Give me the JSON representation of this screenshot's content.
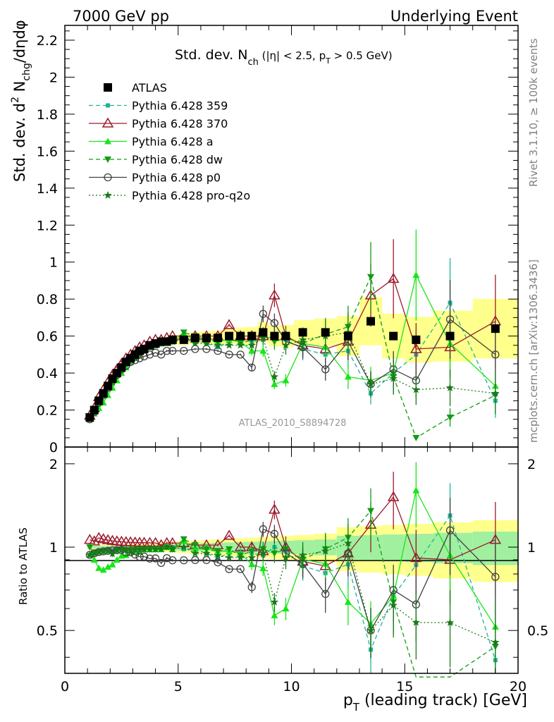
{
  "header": {
    "left": "7000 GeV pp",
    "right": "Underlying Event"
  },
  "plot_title": {
    "main": "Std. dev. N",
    "sub": "ch",
    "rest": " (|η| < 2.5, p",
    "sub2": "T",
    "rest2": " > 0.5 GeV)"
  },
  "side_labels": {
    "rivet": "Rivet 3.1.10, ≥ 100k events",
    "mcplots": "mcplots.cern.ch [arXiv:1306.3436]"
  },
  "watermark": "ATLAS_2010_S8894728",
  "chart_data": [
    {
      "type": "line",
      "panel": "main",
      "ylabel": "Std. dev. d² N_chg/dηdφ",
      "xlim": [
        0,
        20
      ],
      "ylim": [
        0,
        2.28
      ],
      "yticks": [
        "0",
        "0.2",
        "0.4",
        "0.6",
        "0.8",
        "1",
        "1.2",
        "1.4",
        "1.6",
        "1.8",
        "2",
        "2.2"
      ],
      "x": [
        1.1,
        1.3,
        1.5,
        1.7,
        1.9,
        2.1,
        2.3,
        2.5,
        2.7,
        2.9,
        3.1,
        3.3,
        3.5,
        3.75,
        4.0,
        4.25,
        4.5,
        4.75,
        5.25,
        5.75,
        6.25,
        6.75,
        7.25,
        7.75,
        8.25,
        8.75,
        9.25,
        9.75,
        10.5,
        11.5,
        12.5,
        13.5,
        14.5,
        15.5,
        17.0,
        19.0
      ],
      "series": [
        {
          "name": "ATLAS",
          "color": "#000000",
          "marker": "square",
          "style": "none",
          "values": [
            0.16,
            0.2,
            0.25,
            0.29,
            0.33,
            0.37,
            0.4,
            0.43,
            0.46,
            0.48,
            0.5,
            0.52,
            0.53,
            0.55,
            0.56,
            0.57,
            0.57,
            0.58,
            0.58,
            0.59,
            0.59,
            0.59,
            0.6,
            0.6,
            0.6,
            0.62,
            0.6,
            0.6,
            0.62,
            0.62,
            0.6,
            0.68,
            0.6,
            0.58,
            0.6,
            0.64
          ]
        },
        {
          "name": "Pythia 6.428 359",
          "color": "#1fb39a",
          "marker": "small-square",
          "style": "dashed",
          "values": [
            0.15,
            0.19,
            0.24,
            0.28,
            0.32,
            0.36,
            0.39,
            0.42,
            0.45,
            0.47,
            0.49,
            0.51,
            0.52,
            0.54,
            0.55,
            0.56,
            0.57,
            0.58,
            0.57,
            0.58,
            0.56,
            0.54,
            0.57,
            0.58,
            0.57,
            0.58,
            0.6,
            0.58,
            0.53,
            0.5,
            0.52,
            0.29,
            0.4,
            0.5,
            0.78,
            0.25
          ]
        },
        {
          "name": "Pythia 6.428 370",
          "color": "#9c1a2a",
          "marker": "open-triangle",
          "style": "solid",
          "values": [
            0.17,
            0.21,
            0.27,
            0.31,
            0.35,
            0.39,
            0.42,
            0.45,
            0.48,
            0.5,
            0.52,
            0.54,
            0.55,
            0.57,
            0.58,
            0.58,
            0.59,
            0.6,
            0.6,
            0.6,
            0.6,
            0.6,
            0.66,
            0.6,
            0.6,
            0.6,
            0.82,
            0.6,
            0.55,
            0.53,
            0.57,
            0.82,
            0.91,
            0.53,
            0.54,
            0.68
          ]
        },
        {
          "name": "Pythia 6.428 a",
          "color": "#17e617",
          "marker": "triangle",
          "style": "solid",
          "values": [
            0.15,
            0.18,
            0.21,
            0.24,
            0.28,
            0.32,
            0.36,
            0.4,
            0.43,
            0.46,
            0.48,
            0.5,
            0.52,
            0.54,
            0.55,
            0.56,
            0.57,
            0.57,
            0.61,
            0.58,
            0.59,
            0.57,
            0.58,
            0.57,
            0.52,
            0.52,
            0.34,
            0.36,
            0.56,
            0.54,
            0.38,
            0.36,
            0.4,
            0.93,
            0.56,
            0.33
          ]
        },
        {
          "name": "Pythia 6.428 dw",
          "color": "#119c11",
          "marker": "down-triangle",
          "style": "dashed",
          "values": [
            0.16,
            0.19,
            0.24,
            0.28,
            0.32,
            0.35,
            0.39,
            0.42,
            0.45,
            0.47,
            0.49,
            0.51,
            0.52,
            0.54,
            0.55,
            0.56,
            0.57,
            0.57,
            0.62,
            0.6,
            0.58,
            0.57,
            0.59,
            0.56,
            0.58,
            0.61,
            0.57,
            0.59,
            0.56,
            0.61,
            0.65,
            0.92,
            0.38,
            0.05,
            0.16,
            0.28
          ]
        },
        {
          "name": "Pythia 6.428 p0",
          "color": "#404040",
          "marker": "open-circle",
          "style": "solid",
          "values": [
            0.15,
            0.19,
            0.24,
            0.28,
            0.32,
            0.36,
            0.39,
            0.42,
            0.44,
            0.46,
            0.47,
            0.48,
            0.49,
            0.5,
            0.51,
            0.5,
            0.52,
            0.52,
            0.52,
            0.53,
            0.53,
            0.52,
            0.5,
            0.5,
            0.43,
            0.72,
            0.67,
            0.57,
            0.54,
            0.42,
            0.57,
            0.34,
            0.42,
            0.36,
            0.69,
            0.5
          ]
        },
        {
          "name": "Pythia 6.428 pro-q2o",
          "color": "#1a7a1a",
          "marker": "star",
          "style": "dotted",
          "values": [
            0.15,
            0.19,
            0.24,
            0.28,
            0.32,
            0.35,
            0.39,
            0.42,
            0.45,
            0.47,
            0.49,
            0.51,
            0.52,
            0.54,
            0.55,
            0.56,
            0.57,
            0.57,
            0.58,
            0.56,
            0.56,
            0.55,
            0.55,
            0.55,
            0.55,
            0.59,
            0.38,
            0.55,
            0.58,
            0.6,
            0.62,
            0.34,
            0.37,
            0.31,
            0.32,
            0.29
          ]
        }
      ],
      "legend_position": "top-left"
    },
    {
      "type": "line",
      "panel": "ratio",
      "xlabel": "p_T (leading track) [GeV]",
      "ylabel": "Ratio to ATLAS",
      "xlim": [
        0,
        20
      ],
      "ylim": [
        0.35,
        2.3
      ],
      "xticks": [
        "0",
        "5",
        "10",
        "15",
        "20"
      ],
      "yticks": [
        "0.5",
        "1",
        "2"
      ],
      "bands": "ATLAS uncertainty band (yellow outer, green inner) around 1"
    }
  ]
}
